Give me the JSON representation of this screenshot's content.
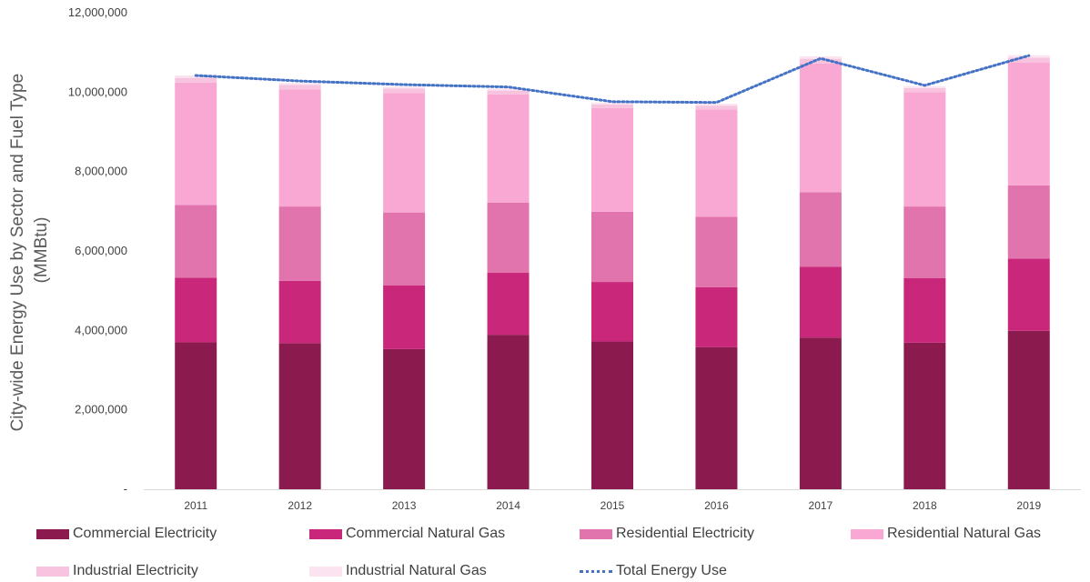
{
  "chart_data": {
    "type": "bar",
    "stacked": true,
    "title": "",
    "ylabel": "City-wide Energy Use by Sector and Fuel Type (MMBtu)",
    "ylabel_lines": [
      "City-wide Energy Use by Sector and Fuel Type",
      "(MMBtu)"
    ],
    "xlabel": "",
    "ylim": [
      0,
      12000000
    ],
    "yticks": [
      0,
      2000000,
      4000000,
      6000000,
      8000000,
      10000000,
      12000000
    ],
    "ytick_labels": [
      "-",
      "2,000,000",
      "4,000,000",
      "6,000,000",
      "8,000,000",
      "10,000,000",
      "12,000,000"
    ],
    "grid": false,
    "legend_position": "bottom",
    "categories": [
      "2011",
      "2012",
      "2013",
      "2014",
      "2015",
      "2016",
      "2017",
      "2018",
      "2019"
    ],
    "series": [
      {
        "name": "Commercial Electricity",
        "color": "#8B1A4F",
        "values": [
          3700000,
          3680000,
          3530000,
          3890000,
          3720000,
          3580000,
          3820000,
          3690000,
          3990000
        ]
      },
      {
        "name": "Commercial Natural Gas",
        "color": "#C9287A",
        "values": [
          1630000,
          1570000,
          1600000,
          1560000,
          1500000,
          1510000,
          1780000,
          1630000,
          1820000
        ]
      },
      {
        "name": "Residential Electricity",
        "color": "#E173AD",
        "values": [
          1830000,
          1870000,
          1840000,
          1770000,
          1770000,
          1770000,
          1880000,
          1800000,
          1840000
        ]
      },
      {
        "name": "Residential Natural Gas",
        "color": "#F9A8D4",
        "values": [
          3080000,
          2950000,
          3010000,
          2720000,
          2610000,
          2700000,
          3240000,
          2880000,
          3090000
        ]
      },
      {
        "name": "Industrial Electricity",
        "color": "#F7C3DE",
        "values": [
          120000,
          110000,
          110000,
          100000,
          90000,
          100000,
          120000,
          100000,
          130000
        ]
      },
      {
        "name": "Industrial Natural Gas",
        "color": "#FBE3EF",
        "values": [
          60000,
          50000,
          50000,
          50000,
          50000,
          50000,
          60000,
          50000,
          60000
        ]
      }
    ],
    "line_series": [
      {
        "name": "Total  Energy Use",
        "color": "#4472C4",
        "style": "dotted",
        "values": [
          10420000,
          10280000,
          10190000,
          10130000,
          9760000,
          9740000,
          10850000,
          10170000,
          10920000
        ]
      }
    ]
  }
}
